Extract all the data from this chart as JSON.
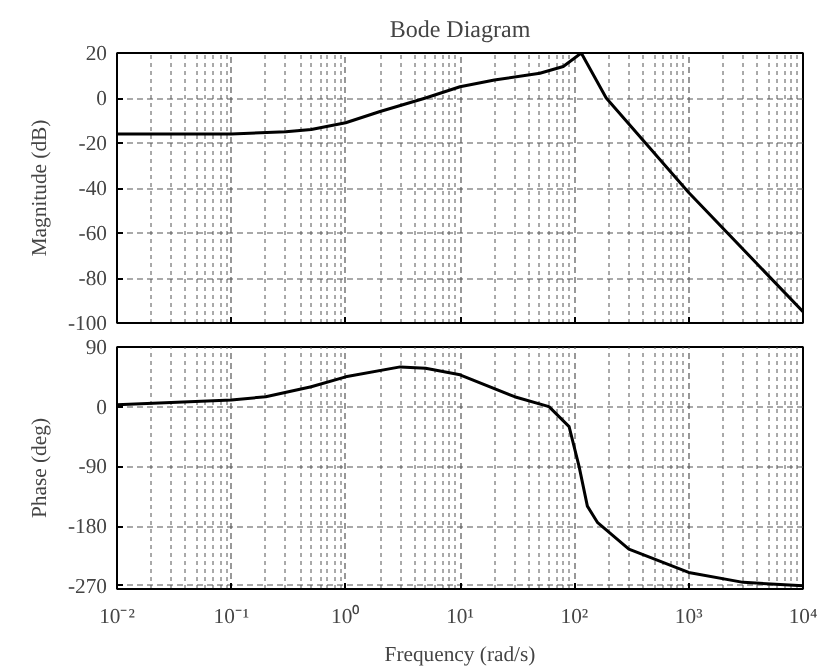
{
  "chart_data": [
    {
      "type": "line",
      "title": "Bode Diagram",
      "ylabel": "Magnitude (dB)",
      "log": "x",
      "grid": true,
      "tick_labels": "y",
      "color": "#000000",
      "xlim": [
        0.01,
        10000
      ],
      "xticks": [
        {
          "value": 0.01,
          "label": null
        },
        {
          "value": 0.1,
          "label": null
        },
        {
          "value": 1,
          "label": null
        },
        {
          "value": 10,
          "label": null
        },
        {
          "value": 100,
          "label": null
        },
        {
          "value": 1000,
          "label": null
        },
        {
          "value": 10000,
          "label": null
        }
      ],
      "ylim": [
        -100,
        20
      ],
      "yticks": [
        -100,
        -80,
        -60,
        -40,
        -20,
        0,
        20
      ],
      "x": [
        0.01,
        0.1,
        0.3,
        0.5,
        1,
        2,
        5,
        10,
        20,
        50,
        80,
        115,
        190,
        1000,
        10000
      ],
      "values": [
        -16,
        -16,
        -15,
        -14,
        -11,
        -6,
        0,
        5,
        8,
        11,
        14,
        20,
        0,
        -42,
        -95
      ]
    },
    {
      "type": "line",
      "xlabel": "Frequency (rad/s)",
      "ylabel": "Phase (deg)",
      "log": "x",
      "grid": true,
      "color": "#000000",
      "xlim": [
        0.01,
        10000
      ],
      "xticks": [
        {
          "value": 0.01,
          "label": "10⁻²"
        },
        {
          "value": 0.1,
          "label": "10⁻¹"
        },
        {
          "value": 1,
          "label": "10⁰"
        },
        {
          "value": 10,
          "label": "10¹"
        },
        {
          "value": 100,
          "label": "10²"
        },
        {
          "value": 1000,
          "label": "10³"
        },
        {
          "value": 10000,
          "label": "10⁴"
        }
      ],
      "ylim": [
        -275,
        90
      ],
      "yticks": [
        -270,
        -180,
        -90,
        0,
        90
      ],
      "x": [
        0.01,
        0.1,
        0.2,
        0.5,
        1,
        3,
        5,
        10,
        30,
        60,
        90,
        110,
        130,
        160,
        300,
        1000,
        3000,
        10000
      ],
      "values": [
        3,
        10,
        15,
        30,
        45,
        60,
        58,
        48,
        15,
        0,
        -30,
        -90,
        -150,
        -175,
        -215,
        -250,
        -265,
        -270
      ]
    }
  ]
}
